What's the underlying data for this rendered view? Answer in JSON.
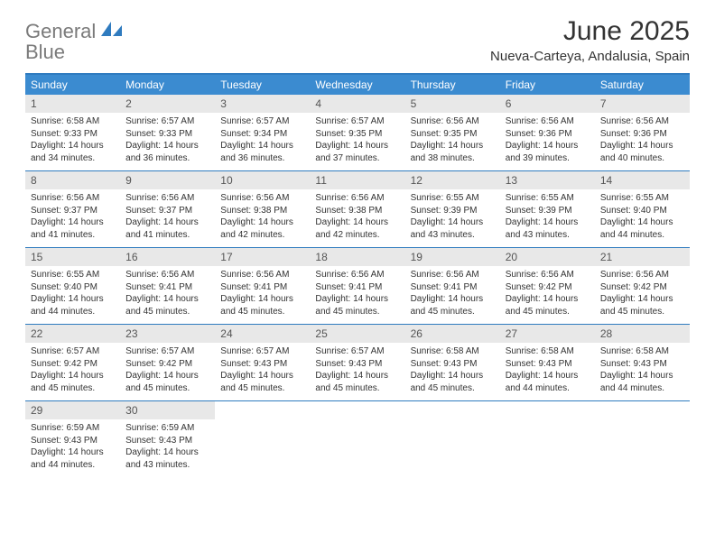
{
  "logo": {
    "word1": "General",
    "word2": "Blue"
  },
  "title": "June 2025",
  "location": "Nueva-Carteya, Andalusia, Spain",
  "colors": {
    "header_bg": "#3b8bd0",
    "header_text": "#ffffff",
    "rule": "#2f7bbf",
    "daynum_bg": "#e8e8e8",
    "text": "#333333",
    "logo_gray": "#7a7a7a",
    "logo_blue": "#2f7bbf"
  },
  "typography": {
    "title_fontsize": 30,
    "subtitle_fontsize": 15,
    "dayhead_fontsize": 12,
    "body_fontsize": 10
  },
  "day_names": [
    "Sunday",
    "Monday",
    "Tuesday",
    "Wednesday",
    "Thursday",
    "Friday",
    "Saturday"
  ],
  "weeks": [
    [
      {
        "n": "1",
        "sr": "Sunrise: 6:58 AM",
        "ss": "Sunset: 9:33 PM",
        "d1": "Daylight: 14 hours",
        "d2": "and 34 minutes."
      },
      {
        "n": "2",
        "sr": "Sunrise: 6:57 AM",
        "ss": "Sunset: 9:33 PM",
        "d1": "Daylight: 14 hours",
        "d2": "and 36 minutes."
      },
      {
        "n": "3",
        "sr": "Sunrise: 6:57 AM",
        "ss": "Sunset: 9:34 PM",
        "d1": "Daylight: 14 hours",
        "d2": "and 36 minutes."
      },
      {
        "n": "4",
        "sr": "Sunrise: 6:57 AM",
        "ss": "Sunset: 9:35 PM",
        "d1": "Daylight: 14 hours",
        "d2": "and 37 minutes."
      },
      {
        "n": "5",
        "sr": "Sunrise: 6:56 AM",
        "ss": "Sunset: 9:35 PM",
        "d1": "Daylight: 14 hours",
        "d2": "and 38 minutes."
      },
      {
        "n": "6",
        "sr": "Sunrise: 6:56 AM",
        "ss": "Sunset: 9:36 PM",
        "d1": "Daylight: 14 hours",
        "d2": "and 39 minutes."
      },
      {
        "n": "7",
        "sr": "Sunrise: 6:56 AM",
        "ss": "Sunset: 9:36 PM",
        "d1": "Daylight: 14 hours",
        "d2": "and 40 minutes."
      }
    ],
    [
      {
        "n": "8",
        "sr": "Sunrise: 6:56 AM",
        "ss": "Sunset: 9:37 PM",
        "d1": "Daylight: 14 hours",
        "d2": "and 41 minutes."
      },
      {
        "n": "9",
        "sr": "Sunrise: 6:56 AM",
        "ss": "Sunset: 9:37 PM",
        "d1": "Daylight: 14 hours",
        "d2": "and 41 minutes."
      },
      {
        "n": "10",
        "sr": "Sunrise: 6:56 AM",
        "ss": "Sunset: 9:38 PM",
        "d1": "Daylight: 14 hours",
        "d2": "and 42 minutes."
      },
      {
        "n": "11",
        "sr": "Sunrise: 6:56 AM",
        "ss": "Sunset: 9:38 PM",
        "d1": "Daylight: 14 hours",
        "d2": "and 42 minutes."
      },
      {
        "n": "12",
        "sr": "Sunrise: 6:55 AM",
        "ss": "Sunset: 9:39 PM",
        "d1": "Daylight: 14 hours",
        "d2": "and 43 minutes."
      },
      {
        "n": "13",
        "sr": "Sunrise: 6:55 AM",
        "ss": "Sunset: 9:39 PM",
        "d1": "Daylight: 14 hours",
        "d2": "and 43 minutes."
      },
      {
        "n": "14",
        "sr": "Sunrise: 6:55 AM",
        "ss": "Sunset: 9:40 PM",
        "d1": "Daylight: 14 hours",
        "d2": "and 44 minutes."
      }
    ],
    [
      {
        "n": "15",
        "sr": "Sunrise: 6:55 AM",
        "ss": "Sunset: 9:40 PM",
        "d1": "Daylight: 14 hours",
        "d2": "and 44 minutes."
      },
      {
        "n": "16",
        "sr": "Sunrise: 6:56 AM",
        "ss": "Sunset: 9:41 PM",
        "d1": "Daylight: 14 hours",
        "d2": "and 45 minutes."
      },
      {
        "n": "17",
        "sr": "Sunrise: 6:56 AM",
        "ss": "Sunset: 9:41 PM",
        "d1": "Daylight: 14 hours",
        "d2": "and 45 minutes."
      },
      {
        "n": "18",
        "sr": "Sunrise: 6:56 AM",
        "ss": "Sunset: 9:41 PM",
        "d1": "Daylight: 14 hours",
        "d2": "and 45 minutes."
      },
      {
        "n": "19",
        "sr": "Sunrise: 6:56 AM",
        "ss": "Sunset: 9:41 PM",
        "d1": "Daylight: 14 hours",
        "d2": "and 45 minutes."
      },
      {
        "n": "20",
        "sr": "Sunrise: 6:56 AM",
        "ss": "Sunset: 9:42 PM",
        "d1": "Daylight: 14 hours",
        "d2": "and 45 minutes."
      },
      {
        "n": "21",
        "sr": "Sunrise: 6:56 AM",
        "ss": "Sunset: 9:42 PM",
        "d1": "Daylight: 14 hours",
        "d2": "and 45 minutes."
      }
    ],
    [
      {
        "n": "22",
        "sr": "Sunrise: 6:57 AM",
        "ss": "Sunset: 9:42 PM",
        "d1": "Daylight: 14 hours",
        "d2": "and 45 minutes."
      },
      {
        "n": "23",
        "sr": "Sunrise: 6:57 AM",
        "ss": "Sunset: 9:42 PM",
        "d1": "Daylight: 14 hours",
        "d2": "and 45 minutes."
      },
      {
        "n": "24",
        "sr": "Sunrise: 6:57 AM",
        "ss": "Sunset: 9:43 PM",
        "d1": "Daylight: 14 hours",
        "d2": "and 45 minutes."
      },
      {
        "n": "25",
        "sr": "Sunrise: 6:57 AM",
        "ss": "Sunset: 9:43 PM",
        "d1": "Daylight: 14 hours",
        "d2": "and 45 minutes."
      },
      {
        "n": "26",
        "sr": "Sunrise: 6:58 AM",
        "ss": "Sunset: 9:43 PM",
        "d1": "Daylight: 14 hours",
        "d2": "and 45 minutes."
      },
      {
        "n": "27",
        "sr": "Sunrise: 6:58 AM",
        "ss": "Sunset: 9:43 PM",
        "d1": "Daylight: 14 hours",
        "d2": "and 44 minutes."
      },
      {
        "n": "28",
        "sr": "Sunrise: 6:58 AM",
        "ss": "Sunset: 9:43 PM",
        "d1": "Daylight: 14 hours",
        "d2": "and 44 minutes."
      }
    ],
    [
      {
        "n": "29",
        "sr": "Sunrise: 6:59 AM",
        "ss": "Sunset: 9:43 PM",
        "d1": "Daylight: 14 hours",
        "d2": "and 44 minutes."
      },
      {
        "n": "30",
        "sr": "Sunrise: 6:59 AM",
        "ss": "Sunset: 9:43 PM",
        "d1": "Daylight: 14 hours",
        "d2": "and 43 minutes."
      },
      {
        "empty": true
      },
      {
        "empty": true
      },
      {
        "empty": true
      },
      {
        "empty": true
      },
      {
        "empty": true
      }
    ]
  ]
}
